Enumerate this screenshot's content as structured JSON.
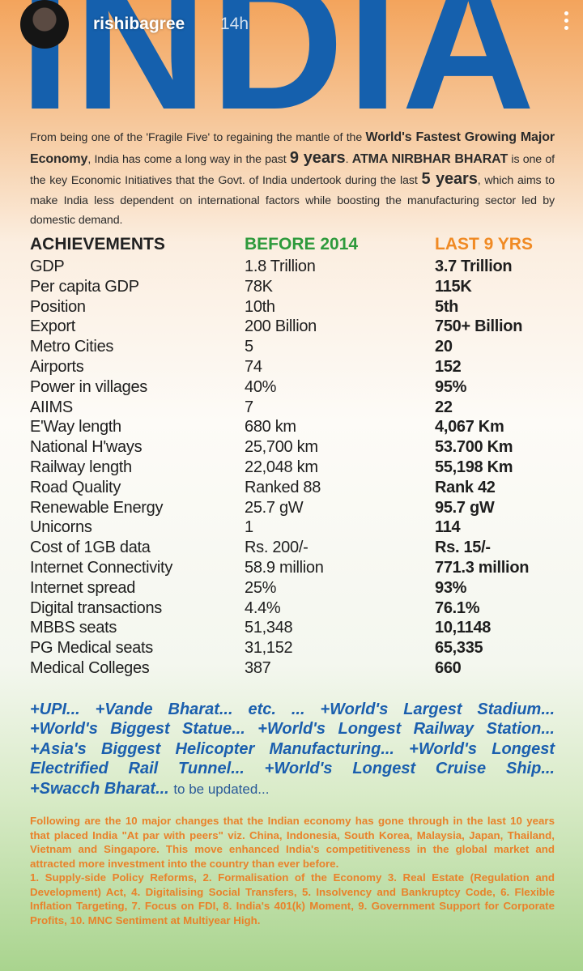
{
  "header": {
    "username": "rishibagree",
    "time": "14h"
  },
  "title": "INDIA",
  "intro": [
    {
      "text": "From being one of the 'Fragile Five' to regaining the mantle of the "
    },
    {
      "text": "World's Fastest Growing Major Economy",
      "emphasis": "strong"
    },
    {
      "text": ", India has come a long way in the past "
    },
    {
      "text": "9 years",
      "emphasis": "large"
    },
    {
      "text": ". "
    },
    {
      "text": "ATMA NIRBHAR BHARAT",
      "emphasis": "strong"
    },
    {
      "text": " is one of the key Economic Initiatives that the Govt. of India undertook during the last "
    },
    {
      "text": "5 years",
      "emphasis": "large"
    },
    {
      "text": ", which aims to make India less dependent on international factors while boosting the manufacturing sector led by domestic demand."
    }
  ],
  "table": {
    "columns": [
      {
        "text": "ACHIEVEMENTS",
        "color": "#222222"
      },
      {
        "text": "BEFORE 2014",
        "color": "#2e9a3c"
      },
      {
        "text": "LAST 9 YRS",
        "color": "#f08a24"
      }
    ],
    "rows": [
      [
        "GDP",
        "1.8 Trillion",
        "3.7 Trillion"
      ],
      [
        "Per capita GDP",
        "78K",
        "115K"
      ],
      [
        "Position",
        "10th",
        "5th"
      ],
      [
        "Export",
        "200 Billion",
        "750+ Billion"
      ],
      [
        "Metro Cities",
        "5",
        "20"
      ],
      [
        "Airports",
        "74",
        "152"
      ],
      [
        "Power in villages",
        "40%",
        "95%"
      ],
      [
        "AIIMS",
        "7",
        "22"
      ],
      [
        "E'Way length",
        "680 km",
        "4,067 Km"
      ],
      [
        "National H'ways",
        "25,700 km",
        "53.700 Km"
      ],
      [
        "Railway length",
        "22,048 km",
        "55,198 Km"
      ],
      [
        "Road Quality",
        "Ranked 88",
        "Rank 42"
      ],
      [
        "Renewable Energy",
        "25.7 gW",
        "95.7 gW"
      ],
      [
        "Unicorns",
        "1",
        "114"
      ],
      [
        "Cost of 1GB data",
        "Rs. 200/-",
        "Rs. 15/-"
      ],
      [
        "Internet Connectivity",
        "58.9 million",
        "771.3 million"
      ],
      [
        "Internet spread",
        "25%",
        "93%"
      ],
      [
        "Digital transactions",
        "4.4%",
        "76.1%"
      ],
      [
        "MBBS seats",
        "51,348",
        "10,1148"
      ],
      [
        "PG Medical seats",
        "31,152",
        "65,335"
      ],
      [
        "Medical Colleges",
        "387",
        "660"
      ]
    ]
  },
  "highlights": {
    "lines": [
      "+UPI... +Vande Bharat... etc. ... +World's Largest Stadium...",
      "+World's Biggest Statue... +World's Longest Railway Station...",
      "+Asia's Biggest Helicopter Manufacturing... +World's Longest",
      "Electrified Rail Tunnel... +World's Longest Cruise Ship...",
      "+Swacch Bharat..."
    ],
    "note": "to be updated..."
  },
  "footer": {
    "paragraph": "Following are the 10 major changes that the Indian economy has gone through in the last 10 years that placed India \"At par with peers\" viz. China, Indonesia, South Korea, Malaysia, Japan, Thailand, Vietnam and Singapore. This move enhanced India's competitiveness in the global market and attracted more investment into the country than ever before.",
    "changes": "1. Supply-side Policy Reforms, 2. Formalisation of the Economy 3. Real Estate (Regulation and Development) Act, 4. Digitalising Social Transfers, 5. Insolvency and Bankruptcy Code, 6. Flexible Inflation Targeting, 7. Focus on FDI, 8. India's 401(k) Moment, 9. Government Support for Corporate Profits, 10. MNC Sentiment at Multiyear High."
  }
}
